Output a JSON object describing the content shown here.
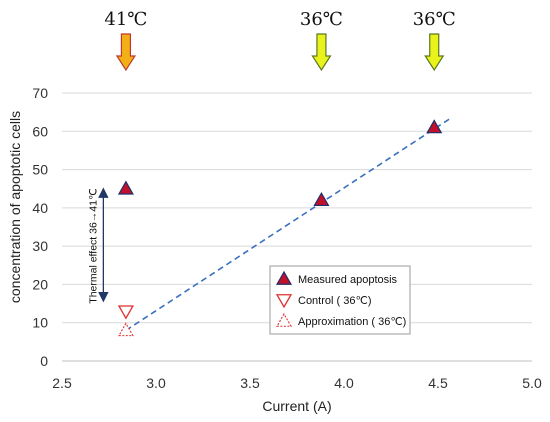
{
  "chart_data": {
    "type": "scatter",
    "xlabel": "Current (A)",
    "ylabel": "concentration of apoptotic cells",
    "xlim": [
      2.5,
      5.0
    ],
    "ylim": [
      0,
      70
    ],
    "x_ticks": [
      "2.5",
      "3.0",
      "3.5",
      "4.0",
      "4.5",
      "5.0"
    ],
    "y_ticks": [
      "0",
      "10",
      "20",
      "30",
      "40",
      "50",
      "60",
      "70"
    ],
    "grid": "horizontal",
    "legend_position": "bottom-right",
    "series": [
      {
        "name": "Measured apoptosis",
        "marker": "triangle-up-filled",
        "color": "#c0102a",
        "points": [
          {
            "x": 2.84,
            "y": 45
          },
          {
            "x": 3.88,
            "y": 42
          },
          {
            "x": 4.48,
            "y": 61
          }
        ]
      },
      {
        "name": "Control ( 36℃)",
        "marker": "triangle-down-open",
        "color": "#e0302f",
        "points": [
          {
            "x": 2.84,
            "y": 13
          }
        ]
      },
      {
        "name": "Approximation ( 36℃)",
        "marker": "triangle-up-open",
        "color": "#e0302f",
        "points": [
          {
            "x": 2.84,
            "y": 8
          }
        ]
      }
    ],
    "trendline": {
      "style": "dashed",
      "color": "#3a6fc0",
      "from": {
        "x": 2.84,
        "y": 8
      },
      "to": {
        "x": 4.57,
        "y": 63.5
      }
    },
    "temperature_markers": [
      {
        "label": "41℃",
        "x": 2.84,
        "color": "#f2b016"
      },
      {
        "label": "36℃",
        "x": 3.88,
        "color": "#eaf21c"
      },
      {
        "label": "36℃",
        "x": 4.48,
        "color": "#eaf21c"
      }
    ],
    "annotation": {
      "text": "Thermal effect 36→41℃",
      "x": 2.72,
      "y_from": 45,
      "y_to": 13
    }
  }
}
